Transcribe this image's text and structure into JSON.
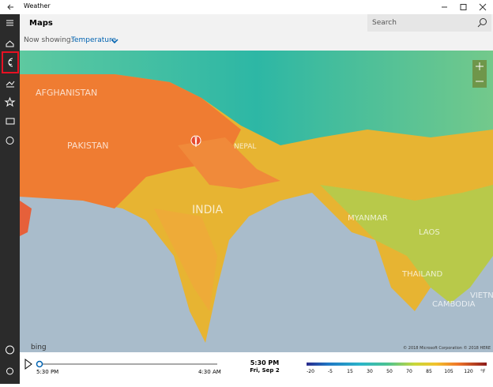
{
  "window": {
    "title": "Weather"
  },
  "header": {
    "title": "Maps",
    "now_showing_label": "Now showing:",
    "layer": "Temperature",
    "search_placeholder": "Search"
  },
  "map": {
    "labels": [
      "AFGHANISTAN",
      "PAKISTAN",
      "NEPAL",
      "INDIA",
      "MYANMAR",
      "LAOS",
      "THAILAND",
      "CAMBODIA",
      "VIETN"
    ],
    "attribution_brand": "bing",
    "copyright": "© 2018 Microsoft Corporation © 2018 HERE"
  },
  "timeline": {
    "start": "5:30 PM",
    "end": "4:30 AM",
    "current_time": "5:30 PM",
    "current_date": "Fri, Sep 2"
  },
  "legend": {
    "labels": [
      -20,
      -5,
      15,
      30,
      50,
      70,
      85,
      105,
      120
    ],
    "unit": "°F"
  }
}
